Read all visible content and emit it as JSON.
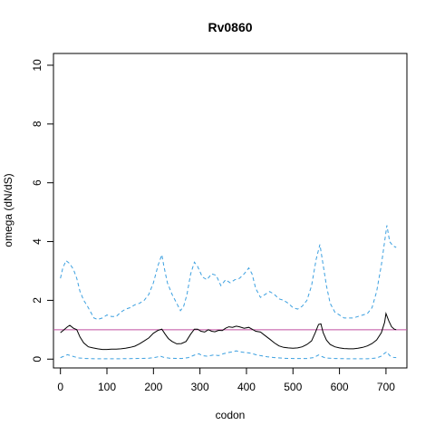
{
  "chart_data": {
    "type": "line",
    "title": "Rv0860",
    "xlabel": "codon",
    "ylabel": "omega (dN/dS)",
    "xlim": [
      -15,
      745
    ],
    "ylim": [
      -0.3,
      10.4
    ],
    "x_ticks": [
      0,
      100,
      200,
      300,
      400,
      500,
      600,
      700
    ],
    "y_ticks": [
      0,
      2,
      4,
      6,
      8,
      10
    ],
    "grid": false,
    "legend": "none",
    "reference_line": {
      "y": 1,
      "color": "#c04fa0"
    },
    "series": [
      {
        "style": "dashed",
        "color": "#3ca0e0",
        "points": [
          [
            0,
            2.75
          ],
          [
            5,
            3.1
          ],
          [
            12,
            3.35
          ],
          [
            20,
            3.25
          ],
          [
            28,
            3.05
          ],
          [
            35,
            2.75
          ],
          [
            42,
            2.3
          ],
          [
            50,
            2.0
          ],
          [
            58,
            1.8
          ],
          [
            65,
            1.6
          ],
          [
            72,
            1.4
          ],
          [
            80,
            1.35
          ],
          [
            90,
            1.4
          ],
          [
            100,
            1.5
          ],
          [
            110,
            1.45
          ],
          [
            120,
            1.45
          ],
          [
            130,
            1.6
          ],
          [
            140,
            1.7
          ],
          [
            150,
            1.75
          ],
          [
            160,
            1.85
          ],
          [
            170,
            1.9
          ],
          [
            180,
            2.0
          ],
          [
            190,
            2.2
          ],
          [
            200,
            2.6
          ],
          [
            210,
            3.2
          ],
          [
            218,
            3.55
          ],
          [
            222,
            3.2
          ],
          [
            230,
            2.6
          ],
          [
            240,
            2.2
          ],
          [
            250,
            1.9
          ],
          [
            258,
            1.65
          ],
          [
            265,
            1.8
          ],
          [
            272,
            2.2
          ],
          [
            280,
            2.9
          ],
          [
            288,
            3.3
          ],
          [
            295,
            3.15
          ],
          [
            305,
            2.8
          ],
          [
            315,
            2.7
          ],
          [
            325,
            2.9
          ],
          [
            335,
            2.85
          ],
          [
            345,
            2.5
          ],
          [
            355,
            2.7
          ],
          [
            365,
            2.6
          ],
          [
            375,
            2.7
          ],
          [
            385,
            2.75
          ],
          [
            395,
            2.9
          ],
          [
            405,
            3.1
          ],
          [
            412,
            2.9
          ],
          [
            420,
            2.4
          ],
          [
            430,
            2.1
          ],
          [
            440,
            2.2
          ],
          [
            450,
            2.3
          ],
          [
            460,
            2.2
          ],
          [
            470,
            2.05
          ],
          [
            480,
            2.0
          ],
          [
            490,
            1.9
          ],
          [
            500,
            1.75
          ],
          [
            510,
            1.7
          ],
          [
            520,
            1.8
          ],
          [
            530,
            2.0
          ],
          [
            540,
            2.5
          ],
          [
            550,
            3.4
          ],
          [
            558,
            3.9
          ],
          [
            565,
            3.2
          ],
          [
            572,
            2.5
          ],
          [
            580,
            1.9
          ],
          [
            590,
            1.6
          ],
          [
            600,
            1.5
          ],
          [
            610,
            1.4
          ],
          [
            620,
            1.4
          ],
          [
            630,
            1.4
          ],
          [
            640,
            1.45
          ],
          [
            650,
            1.5
          ],
          [
            660,
            1.55
          ],
          [
            670,
            1.75
          ],
          [
            680,
            2.3
          ],
          [
            690,
            3.2
          ],
          [
            697,
            4.0
          ],
          [
            702,
            4.55
          ],
          [
            708,
            4.0
          ],
          [
            715,
            3.85
          ],
          [
            722,
            3.8
          ]
        ]
      },
      {
        "style": "solid",
        "color": "#000000",
        "points": [
          [
            0,
            0.9
          ],
          [
            8,
            1.0
          ],
          [
            15,
            1.1
          ],
          [
            20,
            1.15
          ],
          [
            28,
            1.05
          ],
          [
            35,
            1.0
          ],
          [
            42,
            0.75
          ],
          [
            50,
            0.55
          ],
          [
            60,
            0.42
          ],
          [
            70,
            0.38
          ],
          [
            80,
            0.35
          ],
          [
            90,
            0.33
          ],
          [
            100,
            0.33
          ],
          [
            110,
            0.34
          ],
          [
            120,
            0.34
          ],
          [
            130,
            0.35
          ],
          [
            140,
            0.37
          ],
          [
            150,
            0.4
          ],
          [
            160,
            0.44
          ],
          [
            170,
            0.52
          ],
          [
            180,
            0.62
          ],
          [
            190,
            0.72
          ],
          [
            200,
            0.88
          ],
          [
            210,
            0.98
          ],
          [
            218,
            1.02
          ],
          [
            225,
            0.85
          ],
          [
            232,
            0.7
          ],
          [
            240,
            0.6
          ],
          [
            250,
            0.52
          ],
          [
            260,
            0.53
          ],
          [
            270,
            0.6
          ],
          [
            280,
            0.85
          ],
          [
            288,
            1.02
          ],
          [
            295,
            1.02
          ],
          [
            302,
            0.95
          ],
          [
            310,
            0.92
          ],
          [
            318,
            1.0
          ],
          [
            325,
            0.95
          ],
          [
            332,
            0.93
          ],
          [
            340,
            0.98
          ],
          [
            348,
            0.97
          ],
          [
            355,
            1.05
          ],
          [
            362,
            1.1
          ],
          [
            370,
            1.08
          ],
          [
            378,
            1.12
          ],
          [
            385,
            1.1
          ],
          [
            395,
            1.05
          ],
          [
            405,
            1.08
          ],
          [
            412,
            1.02
          ],
          [
            420,
            0.95
          ],
          [
            430,
            0.92
          ],
          [
            440,
            0.8
          ],
          [
            450,
            0.68
          ],
          [
            460,
            0.55
          ],
          [
            470,
            0.45
          ],
          [
            480,
            0.4
          ],
          [
            490,
            0.38
          ],
          [
            500,
            0.37
          ],
          [
            510,
            0.38
          ],
          [
            520,
            0.42
          ],
          [
            530,
            0.5
          ],
          [
            540,
            0.62
          ],
          [
            548,
            0.9
          ],
          [
            555,
            1.18
          ],
          [
            560,
            1.2
          ],
          [
            565,
            0.9
          ],
          [
            572,
            0.65
          ],
          [
            580,
            0.5
          ],
          [
            590,
            0.42
          ],
          [
            600,
            0.38
          ],
          [
            610,
            0.36
          ],
          [
            620,
            0.35
          ],
          [
            630,
            0.35
          ],
          [
            640,
            0.37
          ],
          [
            650,
            0.4
          ],
          [
            660,
            0.45
          ],
          [
            670,
            0.53
          ],
          [
            680,
            0.65
          ],
          [
            690,
            0.9
          ],
          [
            697,
            1.25
          ],
          [
            700,
            1.55
          ],
          [
            706,
            1.3
          ],
          [
            712,
            1.1
          ],
          [
            718,
            1.02
          ],
          [
            722,
            1.0
          ]
        ]
      },
      {
        "style": "dashed",
        "color": "#3ca0e0",
        "points": [
          [
            0,
            0.05
          ],
          [
            8,
            0.1
          ],
          [
            15,
            0.15
          ],
          [
            22,
            0.12
          ],
          [
            30,
            0.08
          ],
          [
            40,
            0.04
          ],
          [
            55,
            0.02
          ],
          [
            80,
            0.01
          ],
          [
            120,
            0.01
          ],
          [
            160,
            0.02
          ],
          [
            190,
            0.03
          ],
          [
            205,
            0.06
          ],
          [
            215,
            0.1
          ],
          [
            222,
            0.06
          ],
          [
            235,
            0.03
          ],
          [
            260,
            0.02
          ],
          [
            275,
            0.05
          ],
          [
            290,
            0.15
          ],
          [
            298,
            0.18
          ],
          [
            305,
            0.12
          ],
          [
            315,
            0.1
          ],
          [
            330,
            0.14
          ],
          [
            340,
            0.12
          ],
          [
            350,
            0.18
          ],
          [
            360,
            0.22
          ],
          [
            370,
            0.25
          ],
          [
            378,
            0.28
          ],
          [
            390,
            0.24
          ],
          [
            400,
            0.22
          ],
          [
            410,
            0.2
          ],
          [
            420,
            0.15
          ],
          [
            430,
            0.12
          ],
          [
            445,
            0.08
          ],
          [
            460,
            0.05
          ],
          [
            480,
            0.03
          ],
          [
            500,
            0.02
          ],
          [
            530,
            0.02
          ],
          [
            545,
            0.05
          ],
          [
            555,
            0.14
          ],
          [
            560,
            0.1
          ],
          [
            570,
            0.04
          ],
          [
            590,
            0.02
          ],
          [
            620,
            0.01
          ],
          [
            660,
            0.01
          ],
          [
            680,
            0.04
          ],
          [
            690,
            0.1
          ],
          [
            697,
            0.2
          ],
          [
            702,
            0.25
          ],
          [
            708,
            0.12
          ],
          [
            715,
            0.06
          ],
          [
            722,
            0.05
          ]
        ]
      }
    ]
  }
}
